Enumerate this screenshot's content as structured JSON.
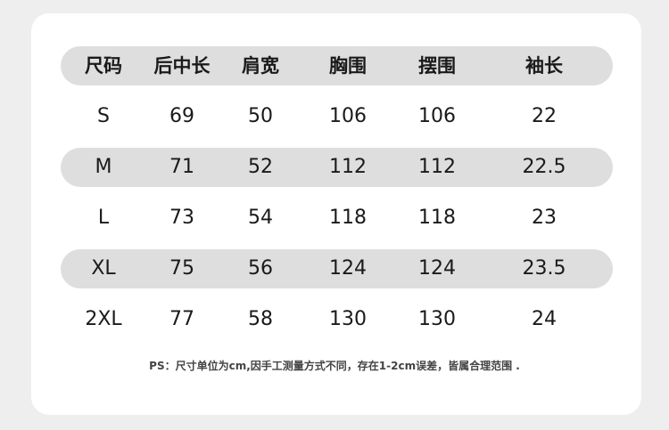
{
  "table": {
    "headers": [
      "尺码",
      "后中长",
      "肩宽",
      "胸围",
      "摆围",
      "袖长"
    ],
    "rows": [
      [
        "S",
        "69",
        "50",
        "106",
        "106",
        "22"
      ],
      [
        "M",
        "71",
        "52",
        "112",
        "112",
        "22.5"
      ],
      [
        "L",
        "73",
        "54",
        "118",
        "118",
        "23"
      ],
      [
        "XL",
        "75",
        "56",
        "124",
        "124",
        "23.5"
      ],
      [
        "2XL",
        "77",
        "58",
        "130",
        "130",
        "24"
      ]
    ]
  },
  "note": "PS：尺寸单位为cm,因手工测量方式不同，存在1-2cm误差，皆属合理范围 .",
  "colors": {
    "band": "#dedede",
    "card": "#ffffff",
    "background": "#eeeeee"
  }
}
